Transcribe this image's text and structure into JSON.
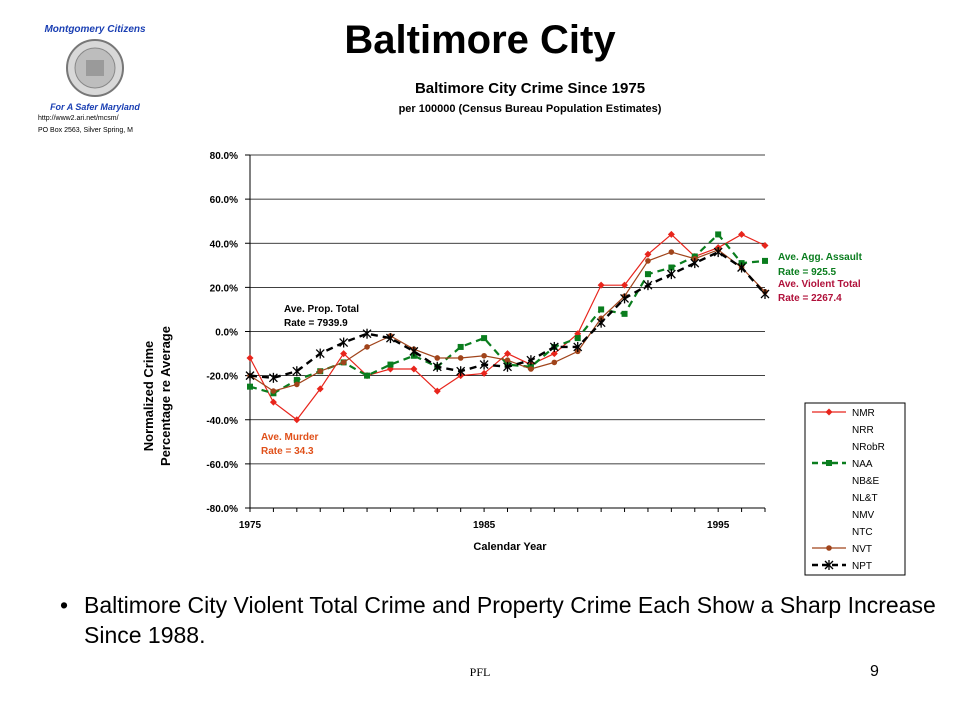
{
  "slide": {
    "title": "Baltimore City",
    "bullet": "Baltimore City Violent Total Crime and Property Crime Each Show a Sharp Increase Since 1988.",
    "footer": "PFL",
    "page_number": "9"
  },
  "logo": {
    "top_text": "Montgomery Citizens",
    "bottom_text": "For A Safer Maryland",
    "url": "http://www2.ari.net/mcsm/",
    "address": "PO Box 2563, Silver Spring, M"
  },
  "chart_data": {
    "type": "line",
    "title": "Baltimore City Crime Since 1975",
    "subtitle": "per 100000 (Census Bureau Population Estimates)",
    "xlabel": "Calendar Year",
    "ylabel_line1": "Normalized Crime",
    "ylabel_line2": "Percentage re Average",
    "xlim": [
      1975,
      1997
    ],
    "xticks": [
      "1975",
      "1985",
      "1995"
    ],
    "ylim": [
      -80,
      80
    ],
    "yticks": [
      "80.0%",
      "60.0%",
      "40.0%",
      "20.0%",
      "0.0%",
      "-20.0%",
      "-40.0%",
      "-60.0%",
      "-80.0%"
    ],
    "grid": true,
    "legend_position": "right",
    "legend": [
      "NMR",
      "NRR",
      "NRobR",
      "NAA",
      "NB&E",
      "NL&T",
      "NMV",
      "NTC",
      "NVT",
      "NPT"
    ],
    "x": [
      1975,
      1976,
      1977,
      1978,
      1979,
      1980,
      1981,
      1982,
      1983,
      1984,
      1985,
      1986,
      1987,
      1988,
      1989,
      1990,
      1991,
      1992,
      1993,
      1994,
      1995,
      1996,
      1997
    ],
    "series": [
      {
        "name": "NMR",
        "color": "#e8251c",
        "style": "solid",
        "marker": "diamond",
        "values": [
          -12,
          -32,
          -40,
          -26,
          -10,
          -20,
          -17,
          -17,
          -27,
          -20,
          -19,
          -10,
          -15,
          -10,
          -1,
          21,
          21,
          35,
          44,
          34,
          38,
          44,
          39
        ]
      },
      {
        "name": "NAA",
        "color": "#0a7d1e",
        "style": "dashed",
        "marker": "square",
        "values": [
          -25,
          -28,
          -22,
          -18,
          -14,
          -20,
          -15,
          -11,
          -16,
          -7,
          -3,
          -15,
          -16,
          -7,
          -3,
          10,
          8,
          26,
          29,
          34,
          44,
          31,
          32
        ]
      },
      {
        "name": "NVT",
        "color": "#a0441b",
        "style": "solid",
        "marker": "circle",
        "values": [
          -20,
          -27,
          -24,
          -18,
          -14,
          -7,
          -2,
          -8,
          -12,
          -12,
          -11,
          -13,
          -17,
          -14,
          -9,
          6,
          16,
          32,
          36,
          33,
          37,
          29,
          18
        ]
      },
      {
        "name": "NPT",
        "color": "#000000",
        "style": "dashed",
        "marker": "star",
        "values": [
          -20,
          -21,
          -18,
          -10,
          -5,
          -1,
          -3,
          -9,
          -16,
          -18,
          -15,
          -16,
          -13,
          -7,
          -7,
          4,
          15,
          21,
          26,
          31,
          36,
          29,
          17
        ]
      }
    ],
    "annotations": {
      "murder_line1": "Ave. Murder",
      "murder_line2": "Rate = 34.3",
      "prop_line1": "Ave. Prop. Total",
      "prop_line2": "Rate = 7939.9",
      "assault_line1": "Ave. Agg. Assault",
      "assault_line2": "Rate = 925.5",
      "violent_line1": "Ave. Violent Total",
      "violent_line2": "Rate = 2267.4"
    },
    "annotation_colors": {
      "murder": "#e0501a",
      "prop": "#000000",
      "assault": "#0a7d1e",
      "violent": "#b0103a"
    }
  }
}
